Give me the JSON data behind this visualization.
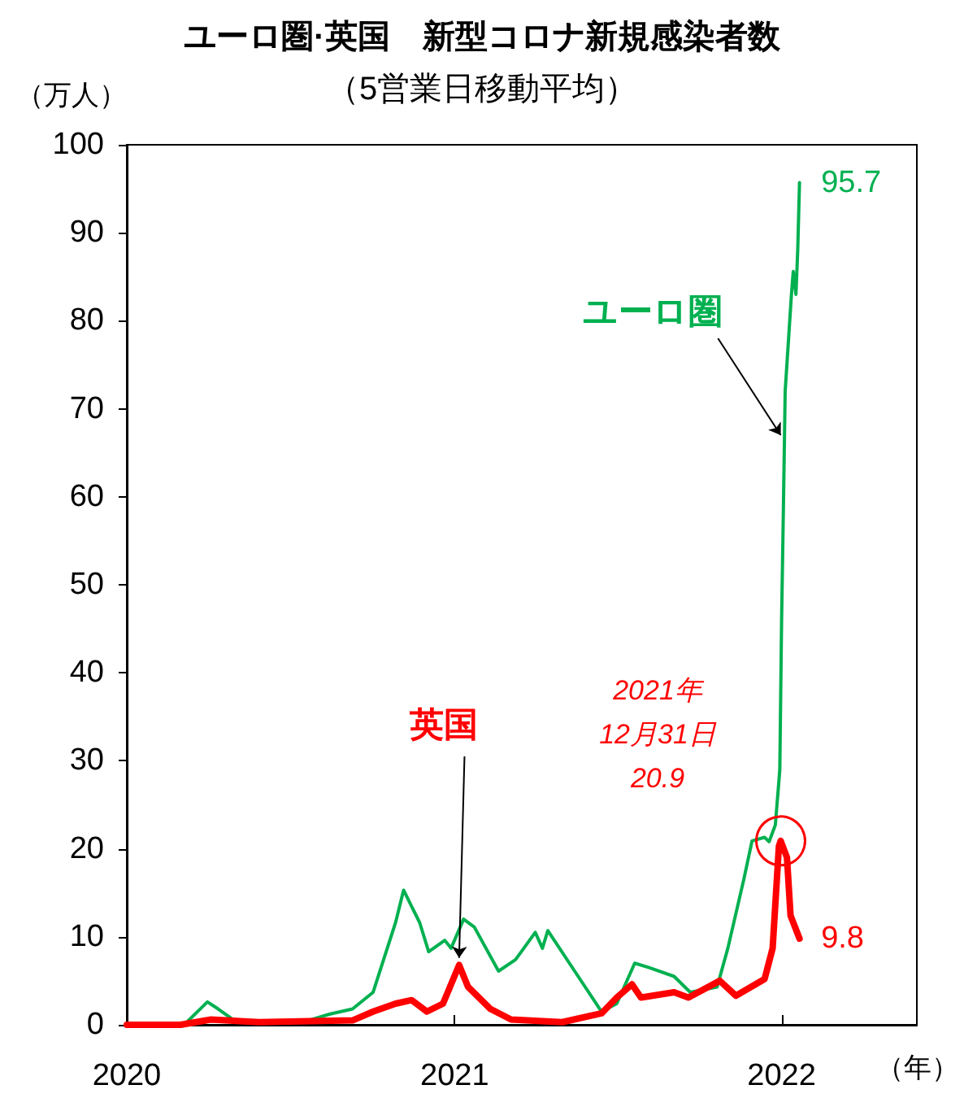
{
  "chart_data": {
    "type": "line",
    "title": "ユーロ圏·英国　新型コロナ新規感染者数",
    "subtitle": "（5営業日移動平均）",
    "ylabel": "（万人）",
    "xlabel": "（年）",
    "xlim": [
      "2020-01-01",
      "2022-06-01"
    ],
    "xticks": [
      "2020",
      "2021",
      "2022"
    ],
    "ylim": [
      0,
      100
    ],
    "yticks": [
      0,
      10,
      20,
      30,
      40,
      50,
      60,
      70,
      80,
      90,
      100
    ],
    "grid": false,
    "legend": false,
    "marker": "none",
    "line_style": "solid",
    "series": [
      {
        "name": "ユーロ圏",
        "color": "#00b050",
        "x": [
          "2020-01-01",
          "2020-03-05",
          "2020-03-31",
          "2020-04-12",
          "2020-04-30",
          "2020-07-19",
          "2020-08-14",
          "2020-09-09",
          "2020-10-02",
          "2020-10-27",
          "2020-11-05",
          "2020-11-23",
          "2020-12-03",
          "2020-12-21",
          "2020-12-28",
          "2021-01-11",
          "2021-01-23",
          "2021-02-19",
          "2021-03-10",
          "2021-04-01",
          "2021-04-09",
          "2021-04-15",
          "2021-05-15",
          "2021-06-14",
          "2021-07-01",
          "2021-07-21",
          "2021-08-06",
          "2021-09-03",
          "2021-09-21",
          "2021-10-21",
          "2021-11-02",
          "2021-11-20",
          "2021-11-29",
          "2021-12-13",
          "2021-12-18",
          "2021-12-25",
          "2021-12-29",
          "2021-12-30",
          "2022-01-01",
          "2022-01-03",
          "2022-01-05",
          "2022-01-12",
          "2022-01-14",
          "2022-01-17",
          "2022-01-19",
          "2022-01-21"
        ],
        "values": [
          0,
          0,
          2.6,
          1.8,
          0.5,
          0.4,
          1.2,
          1.8,
          3.7,
          11.6,
          15.3,
          11.6,
          8.3,
          9.6,
          8.7,
          12.0,
          11.1,
          6.1,
          7.4,
          10.5,
          8.7,
          10.7,
          6.1,
          1.5,
          2.4,
          7.0,
          6.5,
          5.5,
          3.7,
          4.3,
          8.7,
          16.6,
          20.9,
          21.3,
          20.8,
          22.7,
          27.7,
          29.0,
          46.0,
          58.6,
          72.0,
          83.0,
          85.6,
          83.0,
          88.0,
          95.7
        ]
      },
      {
        "name": "英国",
        "color": "#ff0000",
        "x": [
          "2020-01-01",
          "2020-03-01",
          "2020-04-04",
          "2020-05-27",
          "2020-09-09",
          "2020-10-02",
          "2020-10-27",
          "2020-11-14",
          "2020-12-01",
          "2020-12-19",
          "2021-01-06",
          "2021-01-16",
          "2021-02-10",
          "2021-03-05",
          "2021-05-01",
          "2021-06-14",
          "2021-07-01",
          "2021-07-18",
          "2021-07-28",
          "2021-09-03",
          "2021-09-19",
          "2021-10-24",
          "2021-11-11",
          "2021-12-13",
          "2021-12-22",
          "2021-12-29",
          "2021-12-31",
          "2022-01-07",
          "2022-01-11",
          "2022-01-21"
        ],
        "values": [
          0,
          0,
          0.6,
          0.3,
          0.5,
          1.5,
          2.4,
          2.8,
          1.5,
          2.4,
          6.8,
          4.3,
          1.8,
          0.6,
          0.3,
          1.3,
          3.1,
          4.6,
          3.1,
          3.7,
          3.1,
          5.0,
          3.3,
          5.2,
          8.7,
          20.3,
          20.9,
          19.0,
          12.4,
          9.8
        ]
      }
    ],
    "annotations": [
      {
        "text": "95.7",
        "x": "2022-01-21",
        "y": 95.7
      },
      {
        "text": "9.8",
        "x": "2022-01-21",
        "y": 9.8
      },
      {
        "text": "2021年\n12月31日\n20.9",
        "x": "2021-12-31",
        "y": 20.9
      }
    ]
  }
}
